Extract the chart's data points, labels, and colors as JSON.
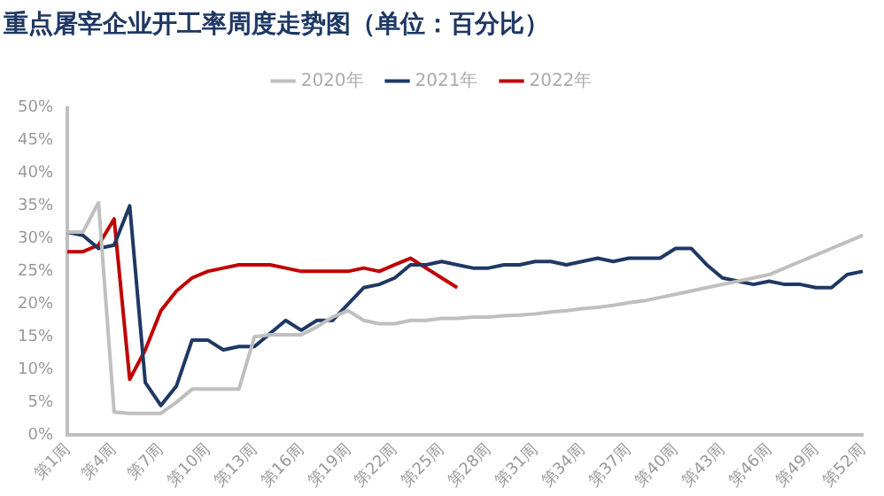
{
  "chart_data": {
    "type": "line",
    "title": "重点屠宰企业开工率周度走势图（单位：百分比）",
    "categories": [
      "第1周",
      null,
      null,
      "第4周",
      null,
      null,
      "第7周",
      null,
      null,
      "第10周",
      null,
      null,
      "第13周",
      null,
      null,
      "第16周",
      null,
      null,
      "第19周",
      null,
      null,
      "第22周",
      null,
      null,
      "第25周",
      null,
      null,
      "第28周",
      null,
      null,
      "第31周",
      null,
      null,
      "第34周",
      null,
      null,
      "第37周",
      null,
      null,
      "第40周",
      null,
      null,
      "第43周",
      null,
      null,
      "第46周",
      null,
      null,
      "第49周",
      null,
      null,
      "第52周"
    ],
    "series": [
      {
        "name": "2020年",
        "color": "#bfbfbf",
        "values": [
          31,
          31,
          35.5,
          3.5,
          3.3,
          3.3,
          3.3,
          5,
          7,
          7,
          7,
          7,
          15,
          15.3,
          15.3,
          15.3,
          16.5,
          18,
          19,
          17.5,
          17,
          17,
          17.5,
          17.5,
          17.8,
          17.8,
          18,
          18,
          18.2,
          18.3,
          18.5,
          18.8,
          19,
          19.3,
          19.5,
          19.8,
          20.2,
          20.5,
          21,
          21.5,
          22,
          22.5,
          23,
          23.5,
          24,
          24.5,
          25.5,
          26.5,
          27.5,
          28.5,
          29.5,
          30.5
        ]
      },
      {
        "name": "2021年",
        "color": "#1f3864",
        "values": [
          31,
          30.5,
          28.5,
          29,
          35,
          8,
          4.5,
          7.5,
          14.5,
          14.5,
          13,
          13.5,
          13.5,
          15.5,
          17.5,
          16,
          17.5,
          17.5,
          20,
          22.5,
          23,
          24,
          26,
          26,
          26.5,
          26,
          25.5,
          25.5,
          26,
          26,
          26.5,
          26.5,
          26,
          26.5,
          27,
          26.5,
          27,
          27,
          27,
          28.5,
          28.5,
          26,
          24,
          23.5,
          23,
          23.5,
          23,
          23,
          22.5,
          22.5,
          24.5,
          25
        ]
      },
      {
        "name": "2022年",
        "color": "#c00000",
        "values": [
          28,
          28,
          29,
          33,
          8.5,
          13,
          19,
          22,
          24,
          25,
          25.5,
          26,
          26,
          26,
          25.5,
          25,
          25,
          25,
          25,
          25.5,
          25,
          26,
          27,
          25.5,
          24,
          22.5,
          null,
          null,
          null,
          null,
          null,
          null,
          null,
          null,
          null,
          null,
          null,
          null,
          null,
          null,
          null,
          null,
          null,
          null,
          null,
          null,
          null,
          null,
          null,
          null,
          null,
          null
        ]
      }
    ],
    "ylim": [
      0,
      50
    ],
    "yticks": [
      {
        "value": 0,
        "label": "0%"
      },
      {
        "value": 5,
        "label": "5%"
      },
      {
        "value": 10,
        "label": "10%"
      },
      {
        "value": 15,
        "label": "15%"
      },
      {
        "value": 20,
        "label": "20%"
      },
      {
        "value": 25,
        "label": "25%"
      },
      {
        "value": 30,
        "label": "30%"
      },
      {
        "value": 35,
        "label": "35%"
      },
      {
        "value": 40,
        "label": "40%"
      },
      {
        "value": 45,
        "label": "45%"
      },
      {
        "value": 50,
        "label": "50%"
      }
    ],
    "grid": false,
    "legend": "top",
    "marker": "none",
    "line_style": "solid"
  }
}
